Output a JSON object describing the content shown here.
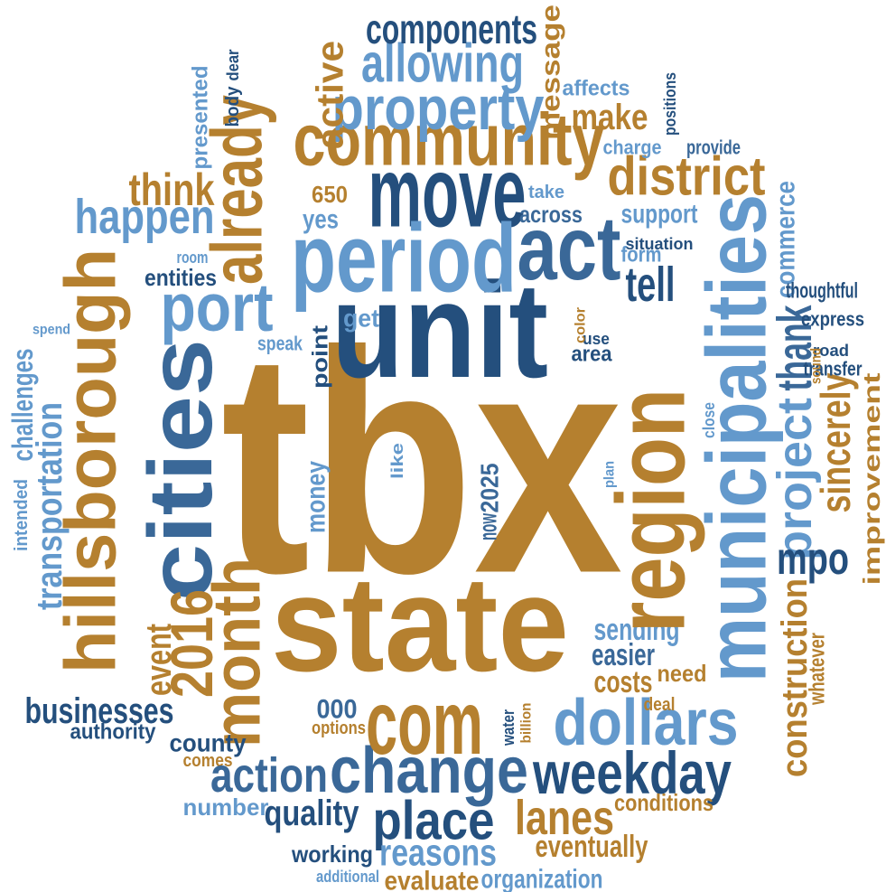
{
  "words": [
    "tbx",
    "unit",
    "state",
    "community",
    "move",
    "period",
    "act",
    "property",
    "allowing",
    "components",
    "district",
    "already",
    "think",
    "happen",
    "port",
    "hillsborough",
    "cities",
    "transportation",
    "challenges",
    "intended",
    "spend",
    "month",
    "2016",
    "event",
    "businesses",
    "authority",
    "county",
    "comes",
    "action",
    "change",
    "weekday",
    "com",
    "dollars",
    "place",
    "lanes",
    "reasons",
    "quality",
    "number",
    "working",
    "additional",
    "evaluate",
    "organization",
    "eventually",
    "conditions",
    "costs",
    "easier",
    "sending",
    "need",
    "deal",
    "000",
    "options",
    "region",
    "municipalities",
    "project",
    "thank",
    "sincerely",
    "improvement",
    "mpo",
    "construction",
    "whatever",
    "commerce",
    "thoughtful",
    "express",
    "road",
    "transfer",
    "sound",
    "close",
    "tell",
    "form",
    "situation",
    "charge",
    "provide",
    "take",
    "across",
    "support",
    "make",
    "affects",
    "message",
    "active",
    "body",
    "dear",
    "presented",
    "positions",
    "650",
    "yes",
    "entities",
    "room",
    "get",
    "speak",
    "point",
    "money",
    "now",
    "2025",
    "like",
    "plan",
    "area",
    "use",
    "color",
    "water",
    "billion"
  ]
}
